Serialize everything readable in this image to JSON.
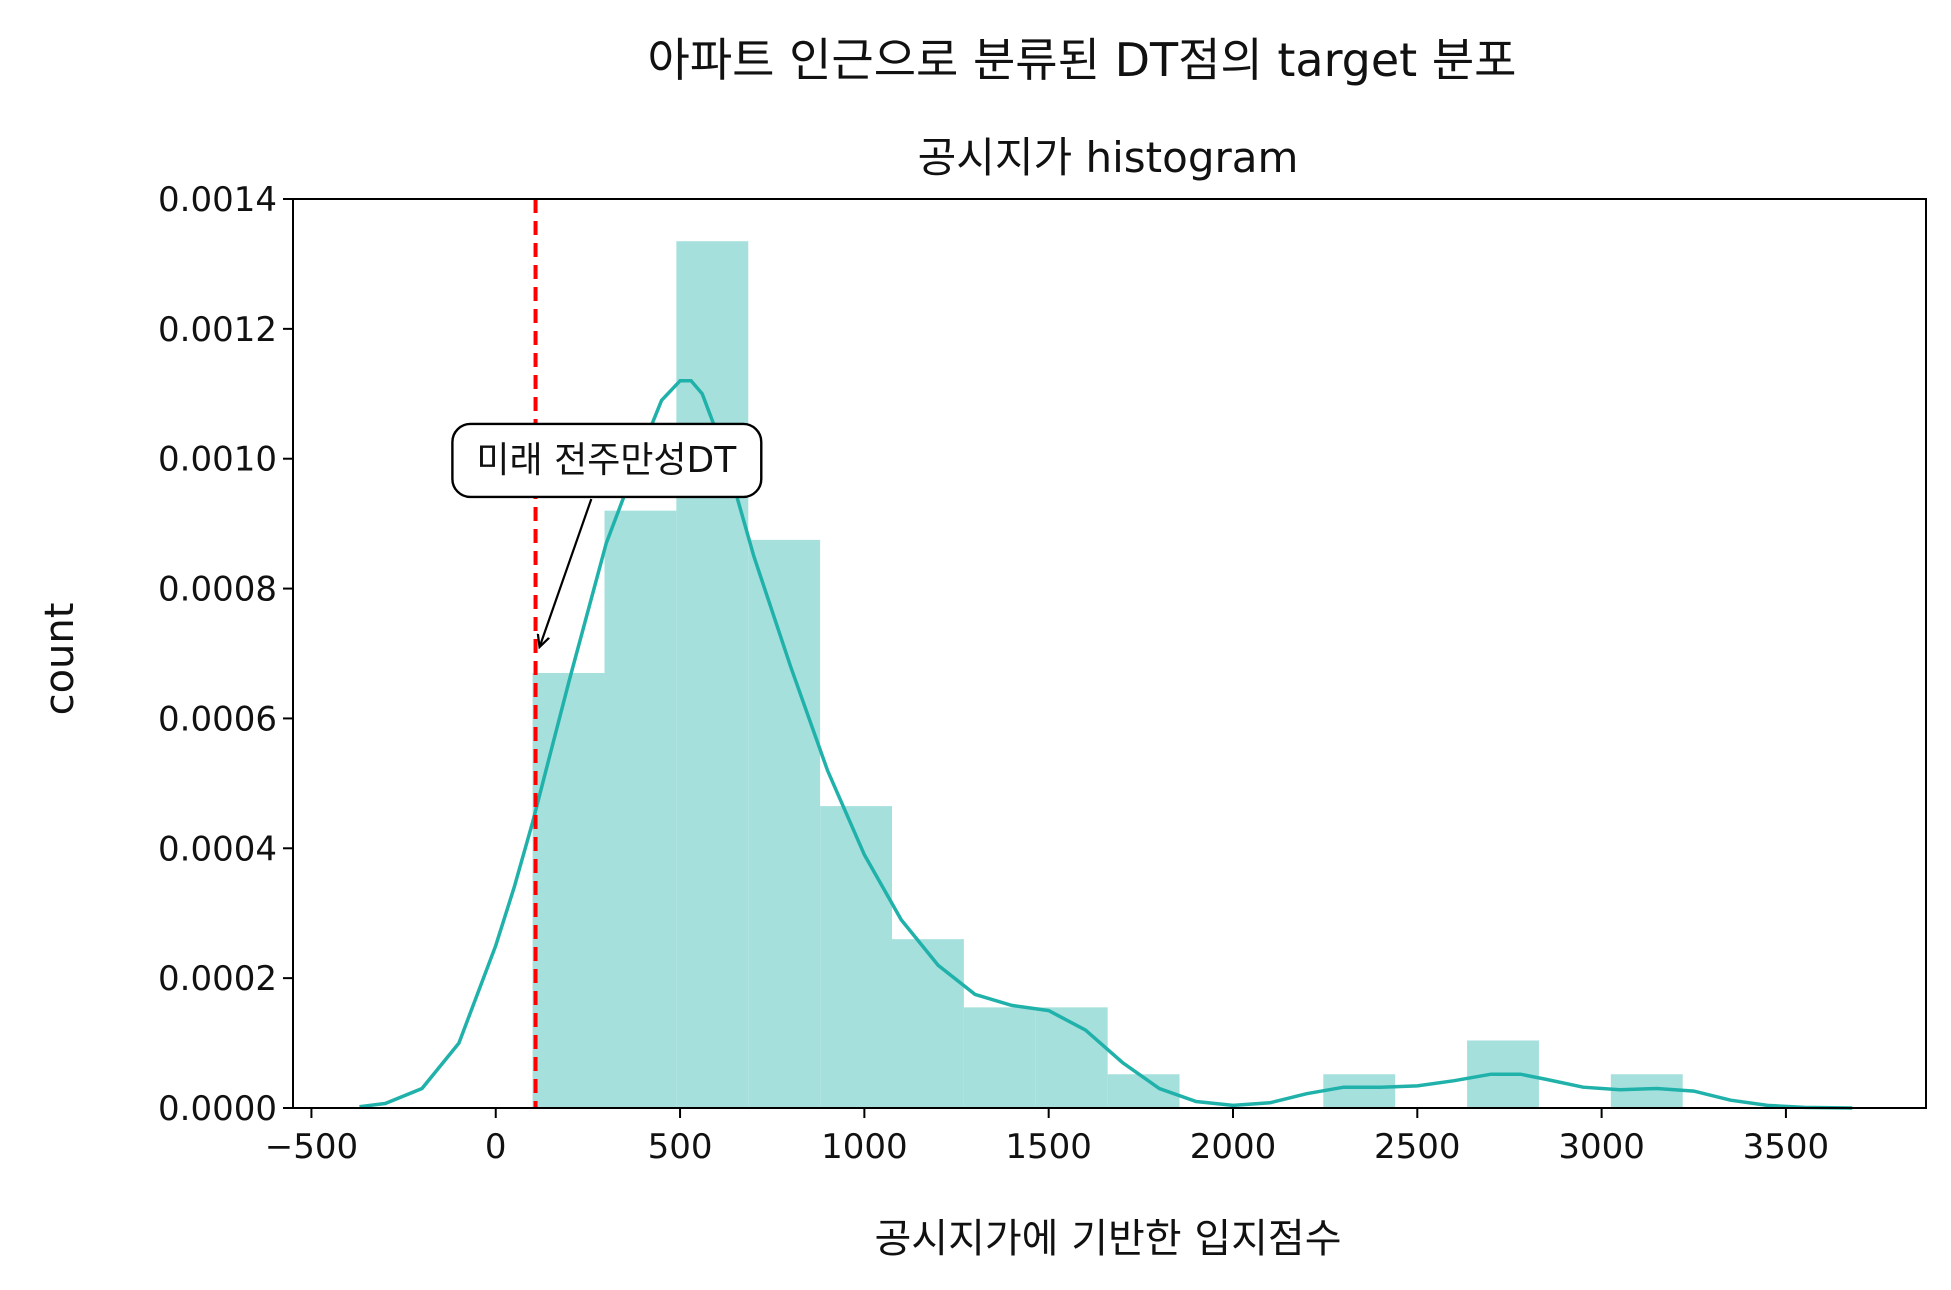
{
  "chart_data": {
    "type": "bar",
    "suptitle": "아파트 인근으로 분류된 DT점의 target 분포",
    "title": "공시지가 histogram",
    "xlabel": "공시지가에 기반한 입지점수",
    "ylabel": "count",
    "xlim": [
      -550,
      3880
    ],
    "ylim": [
      0,
      0.0014
    ],
    "xticks": [
      -500,
      0,
      500,
      1000,
      1500,
      2000,
      2500,
      3000,
      3500
    ],
    "xtick_labels": [
      "−500",
      "0",
      "500",
      "1000",
      "1500",
      "2000",
      "2500",
      "3000",
      "3500"
    ],
    "yticks": [
      0,
      0.0002,
      0.0004,
      0.0006,
      0.0008,
      0.001,
      0.0012,
      0.0014
    ],
    "ytick_labels": [
      "0.0000",
      "0.0002",
      "0.0004",
      "0.0006",
      "0.0008",
      "0.0010",
      "0.0012",
      "0.0014"
    ],
    "grid": false,
    "bar_color": "#a6e0dc",
    "kde_color": "#20b2aa",
    "bins": [
      {
        "x0": 100,
        "x1": 295,
        "value": 0.00067
      },
      {
        "x0": 295,
        "x1": 490,
        "value": 0.00092
      },
      {
        "x0": 490,
        "x1": 685,
        "value": 0.001335
      },
      {
        "x0": 685,
        "x1": 880,
        "value": 0.000875
      },
      {
        "x0": 880,
        "x1": 1075,
        "value": 0.000465
      },
      {
        "x0": 1075,
        "x1": 1270,
        "value": 0.00026
      },
      {
        "x0": 1270,
        "x1": 1465,
        "value": 0.000155
      },
      {
        "x0": 1465,
        "x1": 1660,
        "value": 0.000155
      },
      {
        "x0": 1660,
        "x1": 1855,
        "value": 5.2e-05
      },
      {
        "x0": 1855,
        "x1": 2050,
        "value": 0
      },
      {
        "x0": 2050,
        "x1": 2245,
        "value": 0
      },
      {
        "x0": 2245,
        "x1": 2440,
        "value": 5.2e-05
      },
      {
        "x0": 2440,
        "x1": 2635,
        "value": 0
      },
      {
        "x0": 2635,
        "x1": 2830,
        "value": 0.000104
      },
      {
        "x0": 2830,
        "x1": 3025,
        "value": 0
      },
      {
        "x0": 3025,
        "x1": 3220,
        "value": 5.2e-05
      }
    ],
    "kde": {
      "x": [
        -370,
        -300,
        -200,
        -100,
        0,
        50,
        100,
        150,
        200,
        300,
        400,
        450,
        500,
        530,
        560,
        600,
        650,
        700,
        800,
        900,
        1000,
        1100,
        1200,
        1300,
        1400,
        1500,
        1600,
        1700,
        1800,
        1900,
        2000,
        2100,
        2200,
        2300,
        2400,
        2500,
        2600,
        2700,
        2780,
        2850,
        2950,
        3050,
        3150,
        3250,
        3350,
        3450,
        3550,
        3680
      ],
      "y": [
        2e-06,
        7e-06,
        3e-05,
        0.0001,
        0.00025,
        0.00034,
        0.00044,
        0.00055,
        0.00066,
        0.00087,
        0.00102,
        0.00109,
        0.00112,
        0.00112,
        0.0011,
        0.00104,
        0.00095,
        0.00085,
        0.00068,
        0.00052,
        0.00039,
        0.00029,
        0.00022,
        0.000175,
        0.000158,
        0.00015,
        0.00012,
        7e-05,
        3e-05,
        1e-05,
        4e-06,
        8e-06,
        2.2e-05,
        3.2e-05,
        3.2e-05,
        3.4e-05,
        4.2e-05,
        5.2e-05,
        5.2e-05,
        4.4e-05,
        3.2e-05,
        2.8e-05,
        3e-05,
        2.6e-05,
        1.2e-05,
        4e-06,
        1e-06,
        0.0
      ],
      "name": ""
    },
    "vline": {
      "x": 108,
      "color": "#ff0000",
      "style": "dashed"
    },
    "annotation": {
      "text": "미래 전주만성DT",
      "arrow_to": {
        "x": 108,
        "y": 0.00071
      },
      "text_at": {
        "x": 300,
        "y": 0.000995
      }
    }
  }
}
